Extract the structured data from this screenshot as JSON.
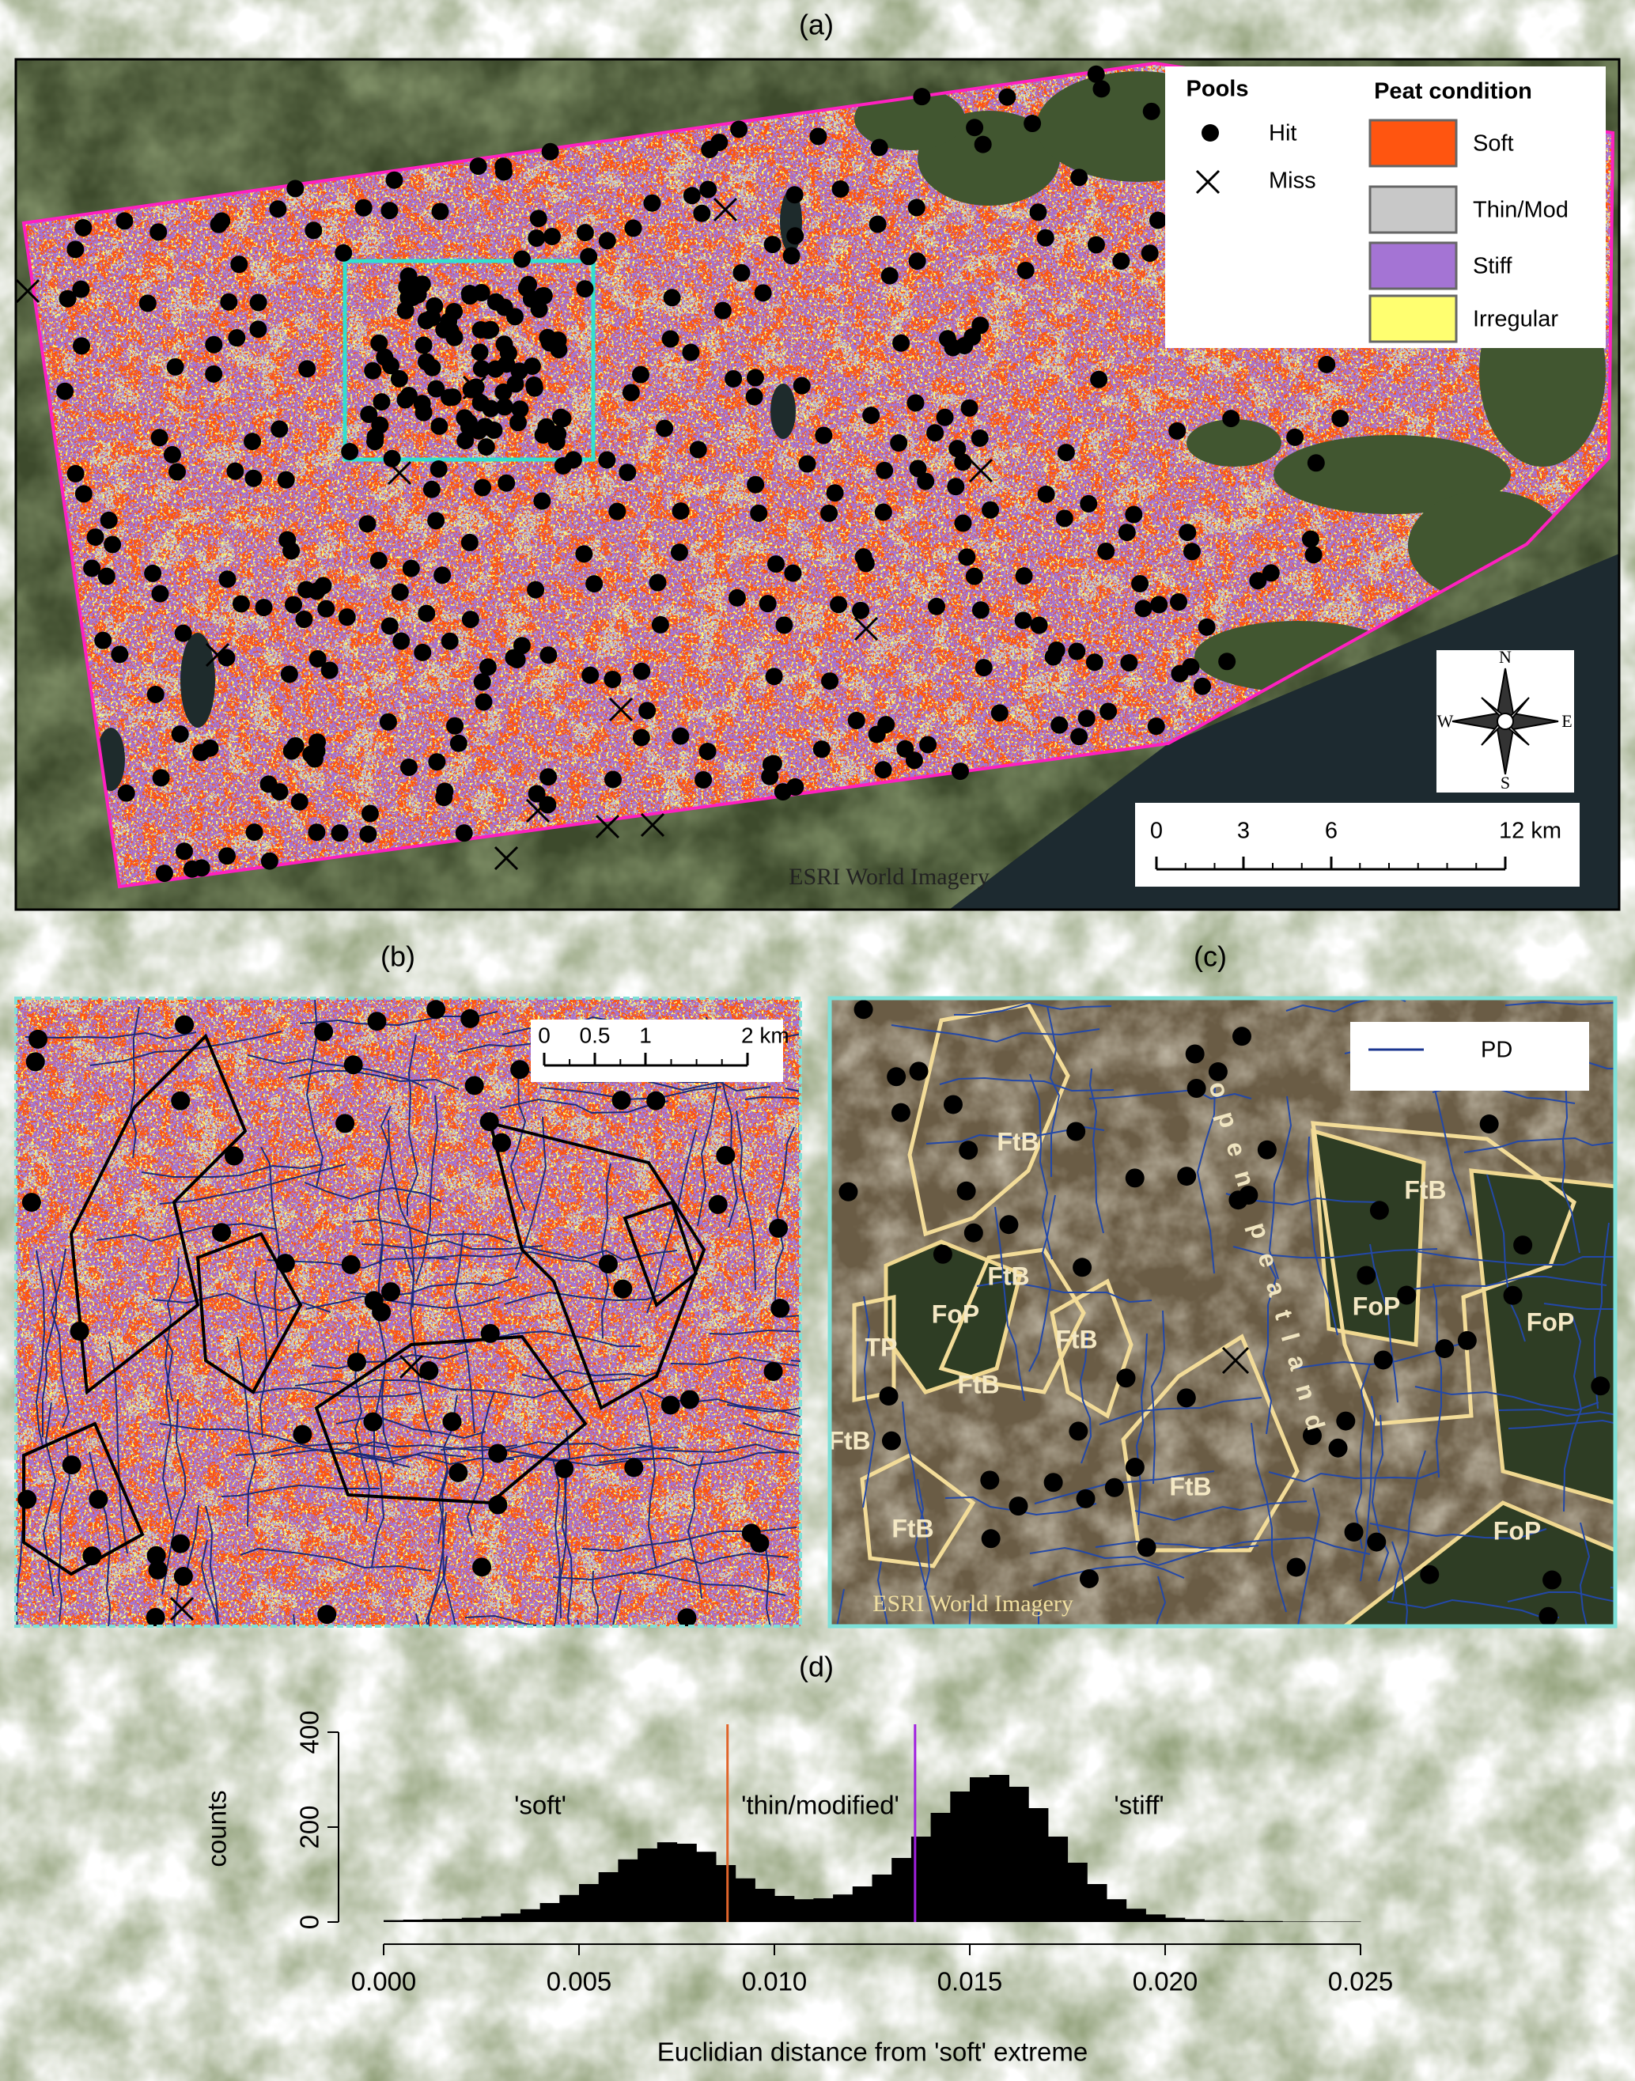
{
  "figure": {
    "panel_labels": [
      "(a)",
      "(b)",
      "(c)",
      "(d)"
    ],
    "map_a": {
      "legend": {
        "pools_title": "Pools",
        "hit": "Hit",
        "miss": "Miss",
        "condition_title": "Peat condition",
        "classes": [
          {
            "name": "Soft",
            "color": "#ff5510"
          },
          {
            "name": "Thin/Mod",
            "color": "#c8c8c8"
          },
          {
            "name": "Stiff",
            "color": "#a474d4"
          },
          {
            "name": "Irregular",
            "color": "#ffff70"
          }
        ]
      },
      "compass": [
        "N",
        "E",
        "S",
        "W"
      ],
      "scale_bar": [
        "0",
        "3",
        "6",
        "12 km"
      ],
      "credit": "ESRI World Imagery"
    },
    "map_b": {
      "scale_bar": [
        "0",
        "0.5",
        "1",
        "2 km"
      ]
    },
    "map_c": {
      "legend": "PD",
      "labels": [
        "FtB",
        "FtB",
        "FtB",
        "FoP",
        "FtB",
        "TP",
        "FtB",
        "FoP",
        "FoP",
        "FtB",
        "FtB",
        "FtB",
        "FoP"
      ],
      "annotation": "open peatland",
      "credit": "ESRI World Imagery"
    }
  },
  "chart_data": {
    "type": "histogram",
    "xlabel": "Euclidian distance from 'soft' extreme",
    "ylabel": "counts",
    "color": "#000000",
    "bins": [
      0,
      0.0005,
      0.001,
      0.0015,
      0.002,
      0.0025,
      0.003,
      0.0035,
      0.004,
      0.0045,
      0.005,
      0.0055,
      0.006,
      0.0065,
      0.007,
      0.0075,
      0.008,
      0.0085,
      0.009,
      0.0095,
      0.01,
      0.0105,
      0.011,
      0.0115,
      0.012,
      0.0125,
      0.013,
      0.0135,
      0.014,
      0.0145,
      0.015,
      0.0155,
      0.016,
      0.0165,
      0.017,
      0.0175,
      0.018,
      0.0185,
      0.019,
      0.0195,
      0.02,
      0.0205,
      0.021,
      0.0215,
      0.022,
      0.0225,
      0.023,
      0.0235,
      0.024,
      0.0245,
      0.025
    ],
    "values": [
      4,
      5,
      6,
      7,
      9,
      12,
      18,
      27,
      40,
      57,
      80,
      105,
      132,
      155,
      168,
      165,
      148,
      120,
      92,
      70,
      55,
      48,
      50,
      58,
      75,
      100,
      135,
      180,
      230,
      275,
      305,
      310,
      285,
      240,
      180,
      125,
      80,
      48,
      28,
      16,
      9,
      6,
      4,
      3,
      2,
      2,
      1,
      1,
      1,
      1
    ],
    "xlim": [
      0,
      0.025
    ],
    "xticks": [
      {
        "value": 0,
        "label": "0.000"
      },
      {
        "value": 0.005,
        "label": "0.005"
      },
      {
        "value": 0.01,
        "label": "0.010"
      },
      {
        "value": 0.015,
        "label": "0.015"
      },
      {
        "value": 0.02,
        "label": "0.020"
      },
      {
        "value": 0.025,
        "label": "0.025"
      }
    ],
    "ylim": [
      0,
      400
    ],
    "yticks": [
      0,
      200,
      400
    ],
    "thresholds": [
      {
        "value": 0.0088,
        "color": "#e0642a"
      },
      {
        "value": 0.0136,
        "color": "#a020e0"
      }
    ],
    "annotations": [
      "'soft'",
      "'thin/modified'",
      "'stiff'"
    ]
  }
}
